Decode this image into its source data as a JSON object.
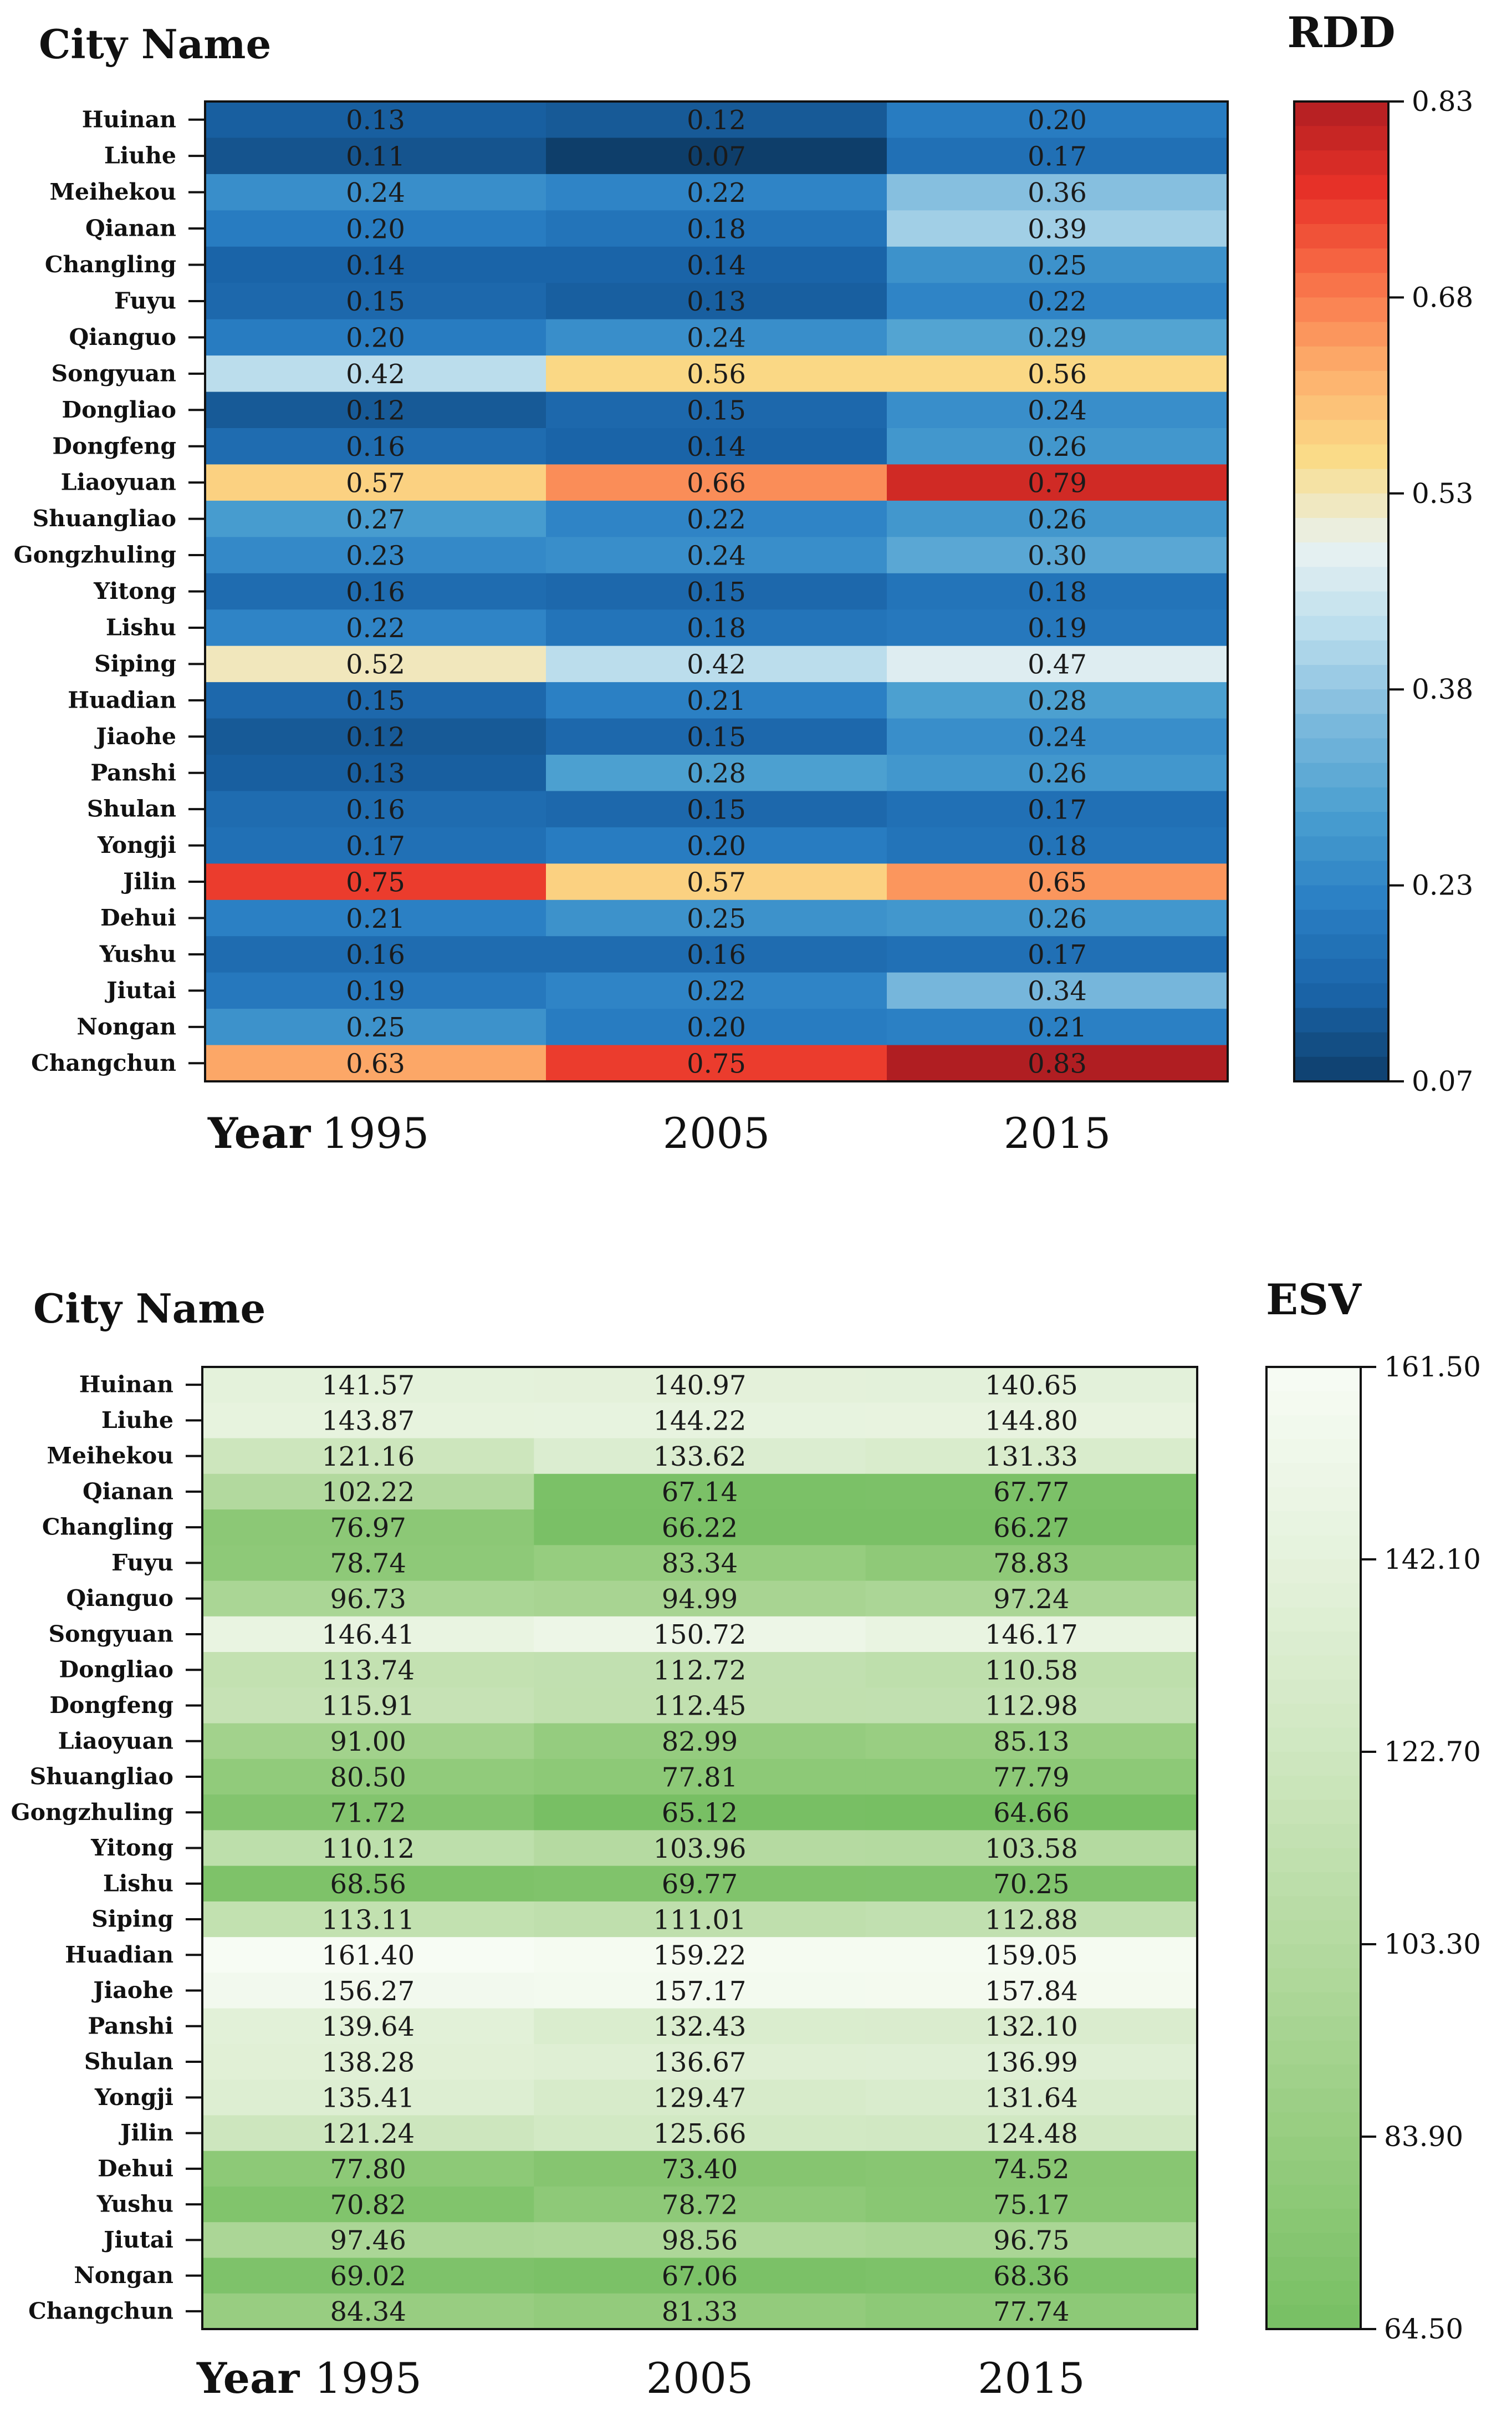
{
  "chart_data": [
    {
      "type": "heatmap",
      "y_axis_title": "City Name",
      "x_axis_title": "Year",
      "colorbar_title": "RDD",
      "colorbar_ticks": [
        "0.83",
        "0.68",
        "0.53",
        "0.38",
        "0.23",
        "0.07"
      ],
      "colorbar_range": [
        0.07,
        0.83
      ],
      "colormap": "RdYlBu_r",
      "years": [
        "1995",
        "2005",
        "2015"
      ],
      "cities": [
        "Huinan",
        "Liuhe",
        "Meihekou",
        "Qianan",
        "Changling",
        "Fuyu",
        "Qianguo",
        "Songyuan",
        "Dongliao",
        "Dongfeng",
        "Liaoyuan",
        "Shuangliao",
        "Gongzhuling",
        "Yitong",
        "Lishu",
        "Siping",
        "Huadian",
        "Jiaohe",
        "Panshi",
        "Shulan",
        "Yongji",
        "Jilin",
        "Dehui",
        "Yushu",
        "Jiutai",
        "Nongan",
        "Changchun"
      ],
      "values": [
        [
          "0.13",
          "0.12",
          "0.20"
        ],
        [
          "0.11",
          "0.07",
          "0.17"
        ],
        [
          "0.24",
          "0.22",
          "0.36"
        ],
        [
          "0.20",
          "0.18",
          "0.39"
        ],
        [
          "0.14",
          "0.14",
          "0.25"
        ],
        [
          "0.15",
          "0.13",
          "0.22"
        ],
        [
          "0.20",
          "0.24",
          "0.29"
        ],
        [
          "0.42",
          "0.56",
          "0.56"
        ],
        [
          "0.12",
          "0.15",
          "0.24"
        ],
        [
          "0.16",
          "0.14",
          "0.26"
        ],
        [
          "0.57",
          "0.66",
          "0.79"
        ],
        [
          "0.27",
          "0.22",
          "0.26"
        ],
        [
          "0.23",
          "0.24",
          "0.30"
        ],
        [
          "0.16",
          "0.15",
          "0.18"
        ],
        [
          "0.22",
          "0.18",
          "0.19"
        ],
        [
          "0.52",
          "0.42",
          "0.47"
        ],
        [
          "0.15",
          "0.21",
          "0.28"
        ],
        [
          "0.12",
          "0.15",
          "0.24"
        ],
        [
          "0.13",
          "0.28",
          "0.26"
        ],
        [
          "0.16",
          "0.15",
          "0.17"
        ],
        [
          "0.17",
          "0.20",
          "0.18"
        ],
        [
          "0.75",
          "0.57",
          "0.65"
        ],
        [
          "0.21",
          "0.25",
          "0.26"
        ],
        [
          "0.16",
          "0.16",
          "0.17"
        ],
        [
          "0.19",
          "0.22",
          "0.34"
        ],
        [
          "0.25",
          "0.20",
          "0.21"
        ],
        [
          "0.63",
          "0.75",
          "0.83"
        ]
      ]
    },
    {
      "type": "heatmap",
      "y_axis_title": "City Name",
      "x_axis_title": "Year",
      "colorbar_title": "ESV",
      "colorbar_ticks": [
        "161.50",
        "142.10",
        "122.70",
        "103.30",
        "83.90",
        "64.50"
      ],
      "colorbar_range": [
        64.5,
        161.5
      ],
      "colormap": "Greens",
      "years": [
        "1995",
        "2005",
        "2015"
      ],
      "cities": [
        "Huinan",
        "Liuhe",
        "Meihekou",
        "Qianan",
        "Changling",
        "Fuyu",
        "Qianguo",
        "Songyuan",
        "Dongliao",
        "Dongfeng",
        "Liaoyuan",
        "Shuangliao",
        "Gongzhuling",
        "Yitong",
        "Lishu",
        "Siping",
        "Huadian",
        "Jiaohe",
        "Panshi",
        "Shulan",
        "Yongji",
        "Jilin",
        "Dehui",
        "Yushu",
        "Jiutai",
        "Nongan",
        "Changchun"
      ],
      "values": [
        [
          "141.57",
          "140.97",
          "140.65"
        ],
        [
          "143.87",
          "144.22",
          "144.80"
        ],
        [
          "121.16",
          "133.62",
          "131.33"
        ],
        [
          "102.22",
          "67.14",
          "67.77"
        ],
        [
          "76.97",
          "66.22",
          "66.27"
        ],
        [
          "78.74",
          "83.34",
          "78.83"
        ],
        [
          "96.73",
          "94.99",
          "97.24"
        ],
        [
          "146.41",
          "150.72",
          "146.17"
        ],
        [
          "113.74",
          "112.72",
          "110.58"
        ],
        [
          "115.91",
          "112.45",
          "112.98"
        ],
        [
          "91.00",
          "82.99",
          "85.13"
        ],
        [
          "80.50",
          "77.81",
          "77.79"
        ],
        [
          "71.72",
          "65.12",
          "64.66"
        ],
        [
          "110.12",
          "103.96",
          "103.58"
        ],
        [
          "68.56",
          "69.77",
          "70.25"
        ],
        [
          "113.11",
          "111.01",
          "112.88"
        ],
        [
          "161.40",
          "159.22",
          "159.05"
        ],
        [
          "156.27",
          "157.17",
          "157.84"
        ],
        [
          "139.64",
          "132.43",
          "132.10"
        ],
        [
          "138.28",
          "136.67",
          "136.99"
        ],
        [
          "135.41",
          "129.47",
          "131.64"
        ],
        [
          "121.24",
          "125.66",
          "124.48"
        ],
        [
          "77.80",
          "73.40",
          "74.52"
        ],
        [
          "70.82",
          "78.72",
          "75.17"
        ],
        [
          "97.46",
          "98.56",
          "96.75"
        ],
        [
          "69.02",
          "67.06",
          "68.36"
        ],
        [
          "84.34",
          "81.33",
          "77.74"
        ]
      ]
    }
  ]
}
